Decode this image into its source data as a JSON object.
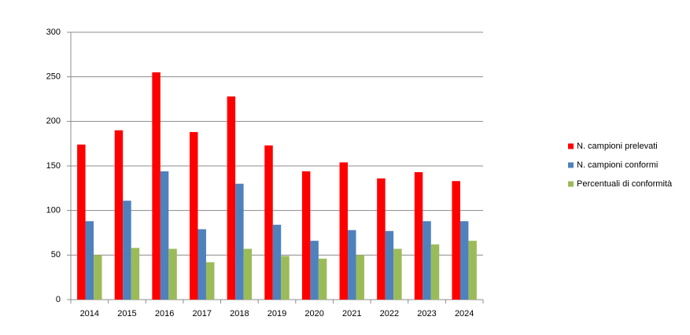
{
  "chart_data": {
    "type": "bar",
    "categories": [
      "2014",
      "2015",
      "2016",
      "2017",
      "2018",
      "2019",
      "2020",
      "2021",
      "2022",
      "2023",
      "2024"
    ],
    "series": [
      {
        "name": "N. campioni prelevati",
        "color": "#ff0000",
        "values": [
          174,
          190,
          255,
          188,
          228,
          173,
          144,
          154,
          136,
          143,
          133
        ]
      },
      {
        "name": "N. campioni conformi",
        "color": "#4f81bd",
        "values": [
          88,
          111,
          144,
          79,
          130,
          84,
          66,
          78,
          77,
          88,
          88
        ]
      },
      {
        "name": "Percentuali di conformità",
        "color": "#9bbb59",
        "values": [
          50,
          58,
          57,
          42,
          57,
          49,
          46,
          50,
          57,
          62,
          66
        ]
      }
    ],
    "ylim": [
      0,
      300
    ],
    "yticks": [
      0,
      50,
      100,
      150,
      200,
      250,
      300
    ],
    "grid": true,
    "legend": "right"
  }
}
